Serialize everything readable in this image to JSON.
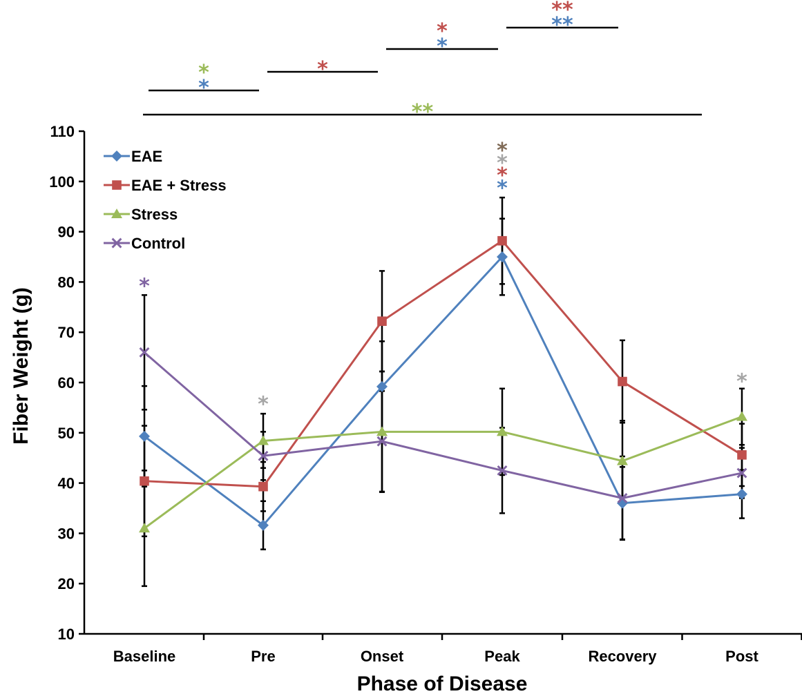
{
  "chart_data": {
    "type": "line",
    "title": "",
    "xlabel": "Phase of Disease",
    "ylabel": "Fiber Weight (g)",
    "ylim": [
      10,
      110
    ],
    "yticks": [
      10,
      20,
      30,
      40,
      50,
      60,
      70,
      80,
      90,
      100,
      110
    ],
    "grid": false,
    "legend": "top-left",
    "categories": [
      "Baseline",
      "Pre",
      "Onset",
      "Peak",
      "Recovery",
      "Post"
    ],
    "series": [
      {
        "name": "EAE",
        "color": "#4F81BD",
        "marker": "diamond",
        "values": [
          49.3,
          31.6,
          59.2,
          85.0,
          36.0,
          37.8
        ],
        "error": [
          10.0,
          4.8,
          9.0,
          7.6,
          7.2,
          4.8
        ]
      },
      {
        "name": "EAE + Stress",
        "color": "#C0504D",
        "marker": "square",
        "values": [
          40.4,
          39.3,
          72.2,
          88.2,
          60.2,
          45.6
        ],
        "error": [
          11.0,
          4.9,
          10.0,
          8.6,
          8.2,
          6.2
        ]
      },
      {
        "name": "Stress",
        "color": "#9BBB59",
        "marker": "triangle",
        "values": [
          31.0,
          48.4,
          50.2,
          50.2,
          44.4,
          53.2
        ],
        "error": [
          11.5,
          5.4,
          12.0,
          8.6,
          8.0,
          5.6
        ]
      },
      {
        "name": "Control",
        "color": "#8064A2",
        "marker": "x",
        "values": [
          66.0,
          45.4,
          48.3,
          42.5,
          37.0,
          42.0
        ],
        "error": [
          11.4,
          4.8,
          10.0,
          8.5,
          8.3,
          5.0
        ]
      }
    ],
    "annotations": [
      {
        "text": "*",
        "color": "#8064A2",
        "x": "Baseline",
        "y": 80
      },
      {
        "text": "*",
        "color": "#A6A6A6",
        "x": "Pre",
        "y": 56.5
      },
      {
        "text": "*",
        "color": "#4F81BD",
        "x": "Peak",
        "y": 99.5
      },
      {
        "text": "*",
        "color": "#C0504D",
        "x": "Peak",
        "y": 102
      },
      {
        "text": "*",
        "color": "#A6A6A6",
        "x": "Peak",
        "y": 104.5
      },
      {
        "text": "*",
        "color": "#7F6A56",
        "x": "Peak",
        "y": 107
      },
      {
        "text": "*",
        "color": "#A6A6A6",
        "x": "Post",
        "y": 61
      }
    ],
    "significance_brackets": [
      {
        "from": "Baseline",
        "to": "Pre",
        "labels": [
          {
            "text": "*",
            "color": "#9BBB59"
          },
          {
            "text": "*",
            "color": "#4F81BD"
          }
        ]
      },
      {
        "from": "Pre",
        "to": "Onset",
        "labels": [
          {
            "text": "*",
            "color": "#C0504D"
          }
        ]
      },
      {
        "from": "Onset",
        "to": "Peak",
        "labels": [
          {
            "text": "*",
            "color": "#C0504D"
          },
          {
            "text": "*",
            "color": "#4F81BD"
          }
        ]
      },
      {
        "from": "Peak",
        "to": "Recovery",
        "labels": [
          {
            "text": "**",
            "color": "#C0504D"
          },
          {
            "text": "**",
            "color": "#4F81BD"
          }
        ]
      },
      {
        "from": "Baseline",
        "to": "Post",
        "labels": [
          {
            "text": "**",
            "color": "#9BBB59"
          }
        ]
      }
    ]
  }
}
